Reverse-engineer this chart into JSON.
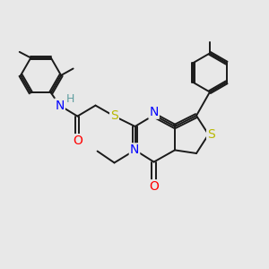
{
  "background_color": "#e8e8e8",
  "bond_color": "#1a1a1a",
  "N_color": "#0000ff",
  "S_color": "#b8b800",
  "O_color": "#ff0000",
  "H_color": "#5f9ea0",
  "figsize": [
    3.0,
    3.0
  ],
  "dpi": 100,
  "xlim": [
    0,
    10
  ],
  "ylim": [
    0,
    10
  ]
}
